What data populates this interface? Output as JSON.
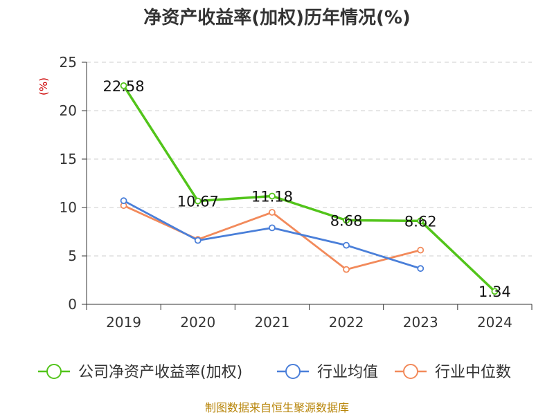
{
  "chart_data": {
    "type": "line",
    "title": "净资产收益率(加权)历年情况(%)",
    "ylabel": "(%)",
    "xlabel": "",
    "categories": [
      "2019",
      "2020",
      "2021",
      "2022",
      "2023",
      "2024"
    ],
    "ylim": [
      0,
      25
    ],
    "yticks": [
      0,
      5,
      10,
      15,
      20,
      25
    ],
    "grid": "horizontal-dashed",
    "legend_position": "bottom",
    "series": [
      {
        "name": "公司净资产收益率(加权)",
        "color": "#52c41a",
        "values": [
          22.58,
          10.67,
          11.18,
          8.68,
          8.62,
          1.34
        ],
        "labels": [
          "22.58",
          "10.67",
          "11.18",
          "8.68",
          "8.62",
          "1.34"
        ]
      },
      {
        "name": "行业均值",
        "color": "#4a7fd9",
        "values": [
          10.7,
          6.6,
          7.9,
          6.1,
          3.7,
          null
        ]
      },
      {
        "name": "行业中位数",
        "color": "#f28a5b",
        "values": [
          10.2,
          6.7,
          9.5,
          3.6,
          5.6,
          null
        ]
      }
    ]
  },
  "footer": {
    "source": "制图数据来自恒生聚源数据库"
  }
}
